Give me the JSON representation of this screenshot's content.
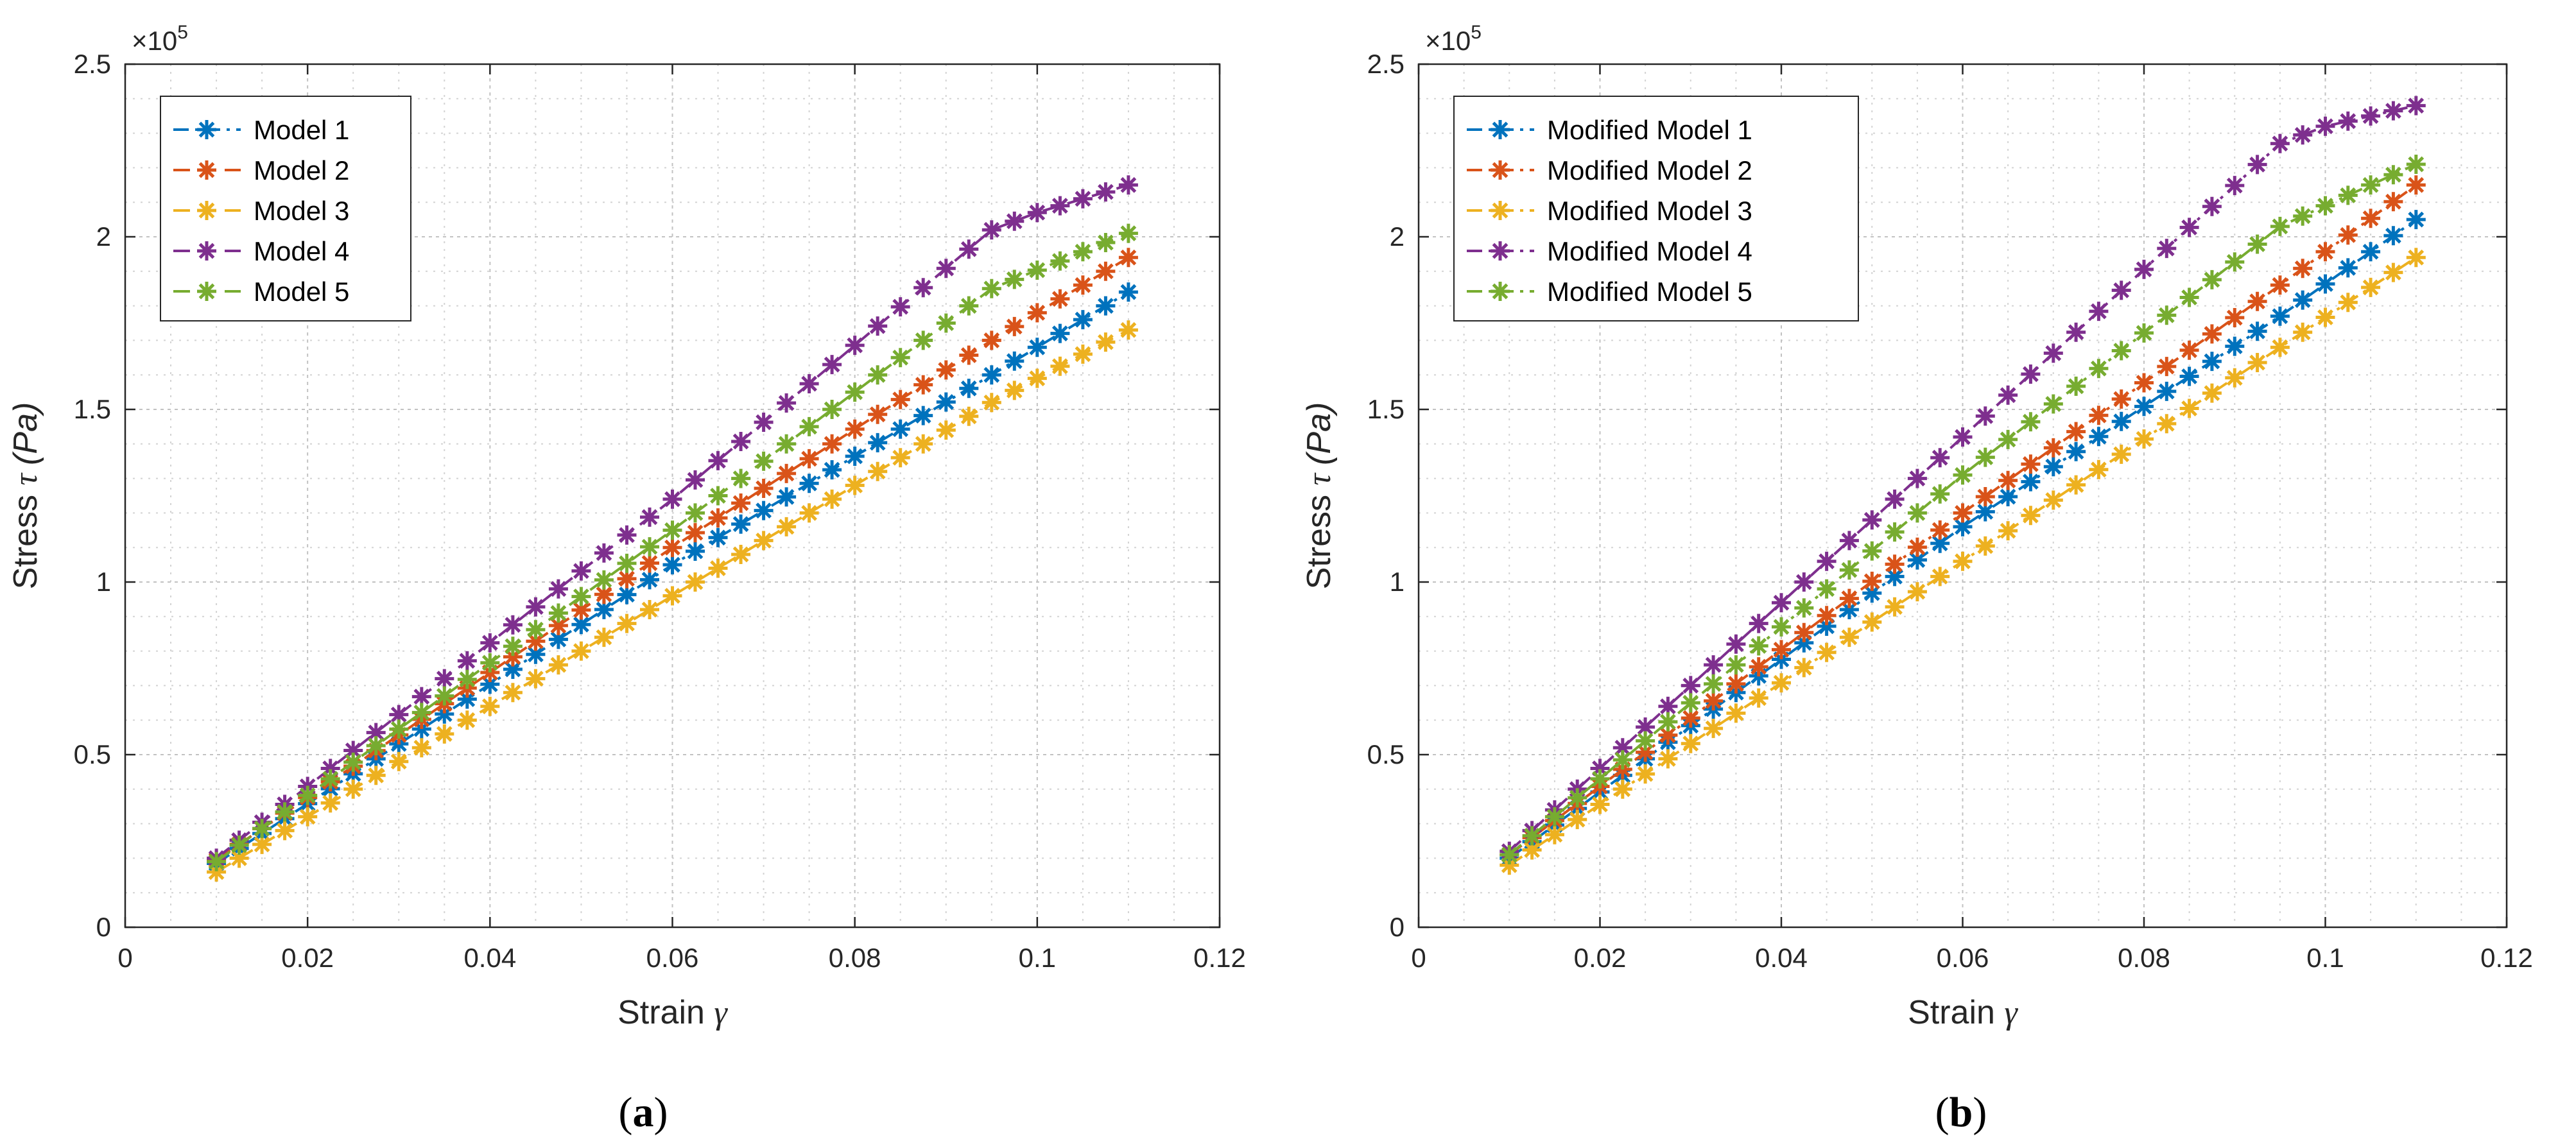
{
  "chart_data": [
    {
      "type": "line",
      "panel_label": {
        "open": "(",
        "letter": "a",
        "close": ")"
      },
      "xlabel": "Strain",
      "xlabel_symbol": "γ",
      "ylabel": "Stress",
      "ylabel_symbol": "τ",
      "ylabel_unit": "(Pa)",
      "exponent": {
        "base": "×10",
        "power": "5"
      },
      "xlim": [
        0,
        0.12
      ],
      "ylim": [
        0,
        2.5
      ],
      "xticks": [
        0,
        0.02,
        0.04,
        0.06,
        0.08,
        0.1,
        0.12
      ],
      "xtick_labels": [
        "0",
        "0.02",
        "0.04",
        "0.06",
        "0.08",
        "0.1",
        "0.12"
      ],
      "yticks": [
        0,
        0.5,
        1,
        1.5,
        2,
        2.5
      ],
      "ytick_labels": [
        "0",
        "0.5",
        "1",
        "1.5",
        "2",
        "2.5"
      ],
      "grid": true,
      "legend_position": "top-left",
      "series": [
        {
          "name": "Model 1",
          "color": "#0072BD",
          "line_style": "dash-dot",
          "keypoints": [
            [
              0.01,
              0.185
            ],
            [
              0.06,
              1.05
            ],
            [
              0.095,
              1.6
            ],
            [
              0.11,
              1.84
            ]
          ]
        },
        {
          "name": "Model 2",
          "color": "#D95319",
          "line_style": "dash",
          "keypoints": [
            [
              0.01,
              0.195
            ],
            [
              0.06,
              1.1
            ],
            [
              0.095,
              1.7
            ],
            [
              0.11,
              1.94
            ]
          ]
        },
        {
          "name": "Model 3",
          "color": "#EDB120",
          "line_style": "dash",
          "keypoints": [
            [
              0.01,
              0.16
            ],
            [
              0.06,
              0.96
            ],
            [
              0.095,
              1.52
            ],
            [
              0.11,
              1.73
            ]
          ]
        },
        {
          "name": "Model 4",
          "color": "#7E2F8E",
          "line_style": "dash",
          "keypoints": [
            [
              0.01,
              0.2
            ],
            [
              0.06,
              1.24
            ],
            [
              0.095,
              2.02
            ],
            [
              0.1,
              2.07
            ],
            [
              0.11,
              2.15
            ]
          ]
        },
        {
          "name": "Model 5",
          "color": "#77AC30",
          "line_style": "dash",
          "keypoints": [
            [
              0.01,
              0.19
            ],
            [
              0.06,
              1.15
            ],
            [
              0.095,
              1.85
            ],
            [
              0.11,
              2.01
            ]
          ]
        }
      ]
    },
    {
      "type": "line",
      "panel_label": {
        "open": "(",
        "letter": "b",
        "close": ")"
      },
      "xlabel": "Strain",
      "xlabel_symbol": "γ",
      "ylabel": "Stress",
      "ylabel_symbol": "τ",
      "ylabel_unit": "(Pa)",
      "exponent": {
        "base": "×10",
        "power": "5"
      },
      "xlim": [
        0,
        0.12
      ],
      "ylim": [
        0,
        2.5
      ],
      "xticks": [
        0,
        0.02,
        0.04,
        0.06,
        0.08,
        0.1,
        0.12
      ],
      "xtick_labels": [
        "0",
        "0.02",
        "0.04",
        "0.06",
        "0.08",
        "0.1",
        "0.12"
      ],
      "yticks": [
        0,
        0.5,
        1,
        1.5,
        2,
        2.5
      ],
      "ytick_labels": [
        "0",
        "0.5",
        "1",
        "1.5",
        "2",
        "2.5"
      ],
      "grid": true,
      "legend_position": "top-left",
      "series": [
        {
          "name": "Modified Model 1",
          "color": "#0072BD",
          "line_style": "dash-dot",
          "keypoints": [
            [
              0.01,
              0.2
            ],
            [
              0.06,
              1.16
            ],
            [
              0.095,
              1.77
            ],
            [
              0.11,
              2.05
            ]
          ]
        },
        {
          "name": "Modified Model 2",
          "color": "#D95319",
          "line_style": "dash-dot",
          "keypoints": [
            [
              0.01,
              0.21
            ],
            [
              0.06,
              1.2
            ],
            [
              0.095,
              1.86
            ],
            [
              0.11,
              2.15
            ]
          ]
        },
        {
          "name": "Modified Model 3",
          "color": "#EDB120",
          "line_style": "dash-dot",
          "keypoints": [
            [
              0.01,
              0.18
            ],
            [
              0.06,
              1.06
            ],
            [
              0.095,
              1.68
            ],
            [
              0.11,
              1.94
            ]
          ]
        },
        {
          "name": "Modified Model 4",
          "color": "#7E2F8E",
          "line_style": "dash-dot",
          "keypoints": [
            [
              0.01,
              0.22
            ],
            [
              0.06,
              1.42
            ],
            [
              0.095,
              2.27
            ],
            [
              0.1,
              2.32
            ],
            [
              0.11,
              2.38
            ]
          ]
        },
        {
          "name": "Modified Model 5",
          "color": "#77AC30",
          "line_style": "dash-dot",
          "keypoints": [
            [
              0.01,
              0.21
            ],
            [
              0.06,
              1.31
            ],
            [
              0.095,
              2.03
            ],
            [
              0.11,
              2.21
            ]
          ]
        }
      ]
    }
  ]
}
